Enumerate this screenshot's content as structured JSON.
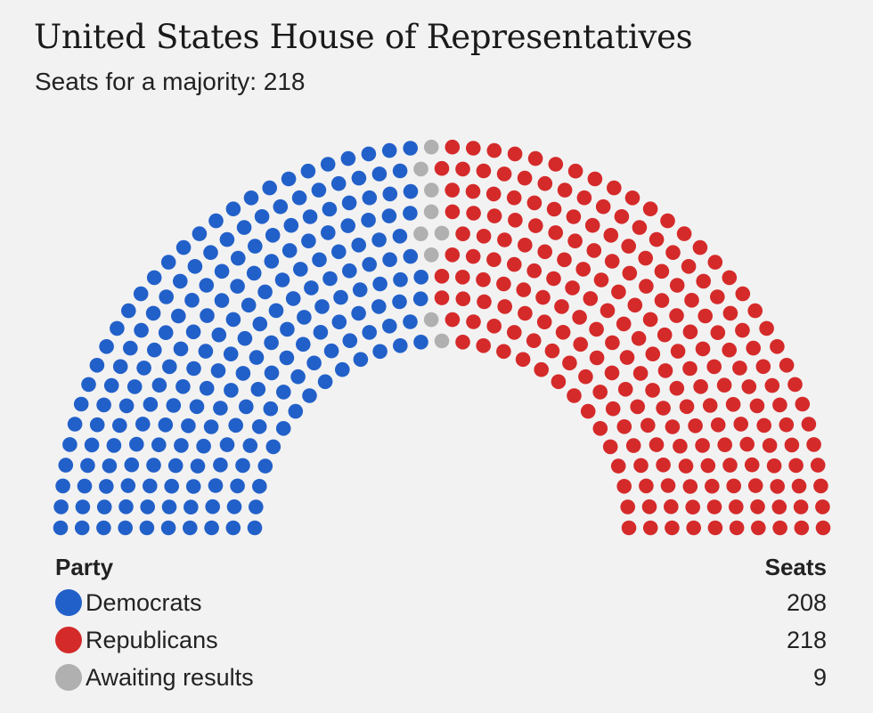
{
  "title": "United States House of Representatives",
  "subtitle": "Seats for a majority: 218",
  "legend": {
    "party_header": "Party",
    "seats_header": "Seats"
  },
  "chart_data": {
    "type": "parliament",
    "title": "United States House of Representatives",
    "subtitle": "Seats for a majority: 218",
    "total_seats": 435,
    "majority": 218,
    "series": [
      {
        "name": "Democrats",
        "seats": 208,
        "color": "#2260c9",
        "value_label": "208"
      },
      {
        "name": "Awaiting results",
        "seats": 9,
        "color": "#b0b0b0",
        "value_label": "9"
      },
      {
        "name": "Republicans",
        "seats": 218,
        "color": "#d52a2a",
        "value_label": "218"
      }
    ],
    "legend_order": [
      "Democrats",
      "Republicans",
      "Awaiting results"
    ]
  }
}
